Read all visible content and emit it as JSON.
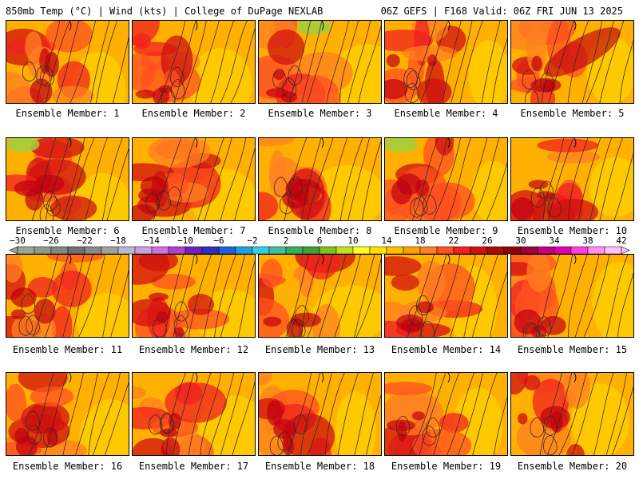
{
  "header": {
    "left": "850mb Temp (°C) | Wind (kts) | College of DuPage NEXLAB",
    "right": "06Z GEFS | F168 Valid: 06Z FRI JUN 13 2025"
  },
  "caption_prefix": "Ensemble Member:",
  "members": [
    {
      "label": "Ensemble Member: 1"
    },
    {
      "label": "Ensemble Member: 2"
    },
    {
      "label": "Ensemble Member: 3"
    },
    {
      "label": "Ensemble Member: 4"
    },
    {
      "label": "Ensemble Member: 5"
    },
    {
      "label": "Ensemble Member: 6"
    },
    {
      "label": "Ensemble Member: 7"
    },
    {
      "label": "Ensemble Member: 8"
    },
    {
      "label": "Ensemble Member: 9"
    },
    {
      "label": "Ensemble Member: 10"
    },
    {
      "label": "Ensemble Member: 11"
    },
    {
      "label": "Ensemble Member: 12"
    },
    {
      "label": "Ensemble Member: 13"
    },
    {
      "label": "Ensemble Member: 14"
    },
    {
      "label": "Ensemble Member: 15"
    },
    {
      "label": "Ensemble Member: 16"
    },
    {
      "label": "Ensemble Member: 17"
    },
    {
      "label": "Ensemble Member: 18"
    },
    {
      "label": "Ensemble Member: 19"
    },
    {
      "label": "Ensemble Member: 20"
    }
  ],
  "colorbar": {
    "labels": [
      "−30",
      "−26",
      "−22",
      "−18",
      "−14",
      "−10",
      "−6",
      "−2",
      "2",
      "6",
      "10",
      "14",
      "18",
      "22",
      "26",
      "30",
      "34",
      "38",
      "42"
    ],
    "colors": [
      "#9aa69a",
      "#8c9a8c",
      "#7f8a7f",
      "#707070",
      "#8a8a8a",
      "#a0a0a0",
      "#b8b8d0",
      "#c8a0e0",
      "#d070e0",
      "#b040d0",
      "#7020c0",
      "#3030c0",
      "#2060e0",
      "#20a0e0",
      "#30d0e0",
      "#40c0a0",
      "#30b060",
      "#40a030",
      "#80c020",
      "#c0e020",
      "#ffff20",
      "#ffe000",
      "#ffc000",
      "#ffa000",
      "#ff8020",
      "#ff5020",
      "#f02020",
      "#d01010",
      "#b00808",
      "#900000",
      "#a00040",
      "#c00080",
      "#e000b0",
      "#ff40e0",
      "#ff90f0",
      "#ffc0ff"
    ]
  }
}
